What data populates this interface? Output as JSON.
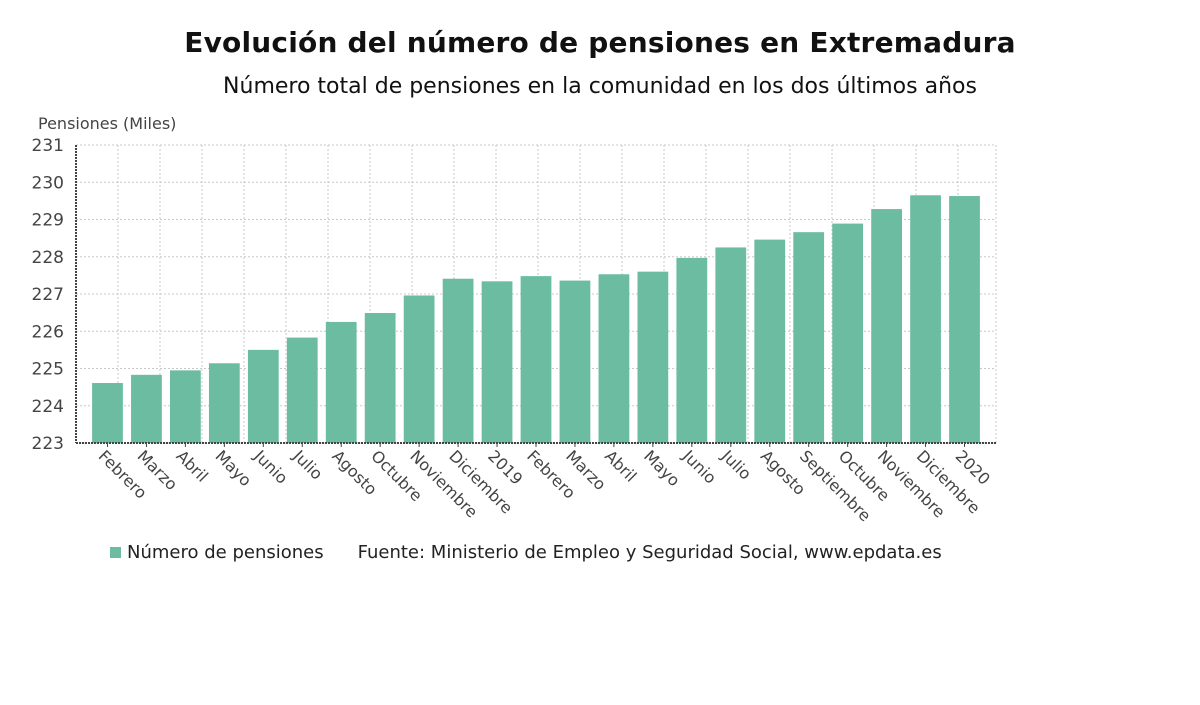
{
  "colors": {
    "bar": "#6bbca1",
    "axis": "#444444",
    "grid": "#c8c8c8",
    "text": "#444444"
  },
  "chart_data": {
    "type": "bar",
    "title": "Evolución del número de pensiones en Extremadura",
    "subtitle": "Número total de pensiones en la comunidad en los dos últimos años",
    "xlabel": "",
    "ylabel": "Pensiones (Miles)",
    "ylim": [
      223,
      231
    ],
    "yticks": [
      223,
      224,
      225,
      226,
      227,
      228,
      229,
      230,
      231
    ],
    "grid": true,
    "legend_position": "bottom-left",
    "categories": [
      "Febrero",
      "Marzo",
      "Abril",
      "Mayo",
      "Junio",
      "Julio",
      "Agosto",
      "Octubre",
      "Noviembre",
      "Diciembre",
      "2019",
      "Febrero",
      "Marzo",
      "Abril",
      "Mayo",
      "Junio",
      "Julio",
      "Agosto",
      "Septiembre",
      "Octubre",
      "Noviembre",
      "Diciembre",
      "2020"
    ],
    "series": [
      {
        "name": "Número de pensiones",
        "values": [
          224.61,
          224.83,
          224.95,
          225.14,
          225.5,
          225.83,
          226.25,
          226.49,
          226.96,
          227.41,
          227.34,
          227.48,
          227.36,
          227.53,
          227.6,
          227.97,
          228.25,
          228.46,
          228.66,
          228.89,
          229.28,
          229.65,
          229.63
        ]
      }
    ],
    "source": "Fuente: Ministerio de Empleo y Seguridad Social, www.epdata.es"
  }
}
